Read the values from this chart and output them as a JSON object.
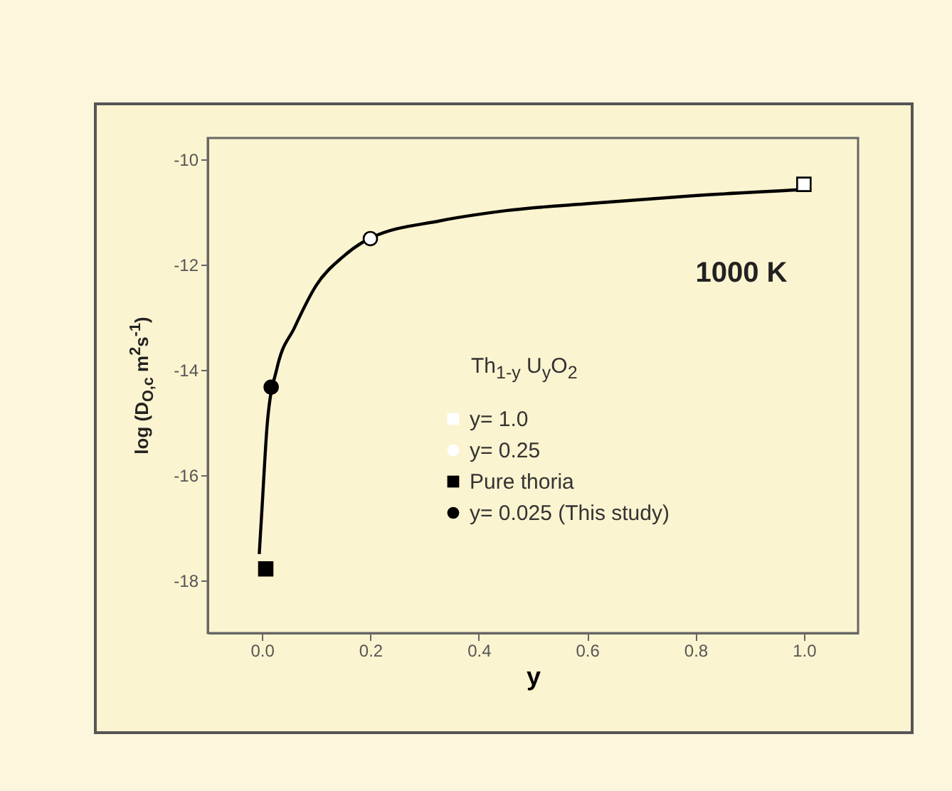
{
  "chart_data": {
    "type": "scatter",
    "xlabel": "y",
    "ylabel": "log (D$_{O,c}$ m$^{2}$s$^{-1}$)",
    "legend_title": "Th$_{1-y}$ U$_{y}$O$_{2}$",
    "annotations": [
      "1000 K"
    ],
    "xlim": [
      -0.1,
      1.1
    ],
    "ylim": [
      -19,
      -9.6
    ],
    "xticks": [
      {
        "value": 0,
        "label": "0.0"
      },
      {
        "value": 0.2,
        "label": "0.2"
      },
      {
        "value": 0.4,
        "label": "0.4"
      },
      {
        "value": 0.6,
        "label": "0.6"
      },
      {
        "value": 0.8,
        "label": "0.8"
      },
      {
        "value": 1,
        "label": "1.0"
      }
    ],
    "yticks": [
      -18,
      -16,
      -14,
      -12,
      -10
    ],
    "grid": false,
    "legend": "bottom right",
    "series": [
      {
        "type": "line",
        "color": "#000000",
        "line_style": "solid",
        "x": [
          -0.005,
          0,
          0.01,
          0.028,
          0.06,
          0.1,
          0.15,
          0.2,
          0.33,
          0.45,
          0.61,
          0.79,
          1.0
        ],
        "values": [
          -17.5,
          -16.65,
          -15.0,
          -13.96,
          -13.2,
          -12.4,
          -11.85,
          -11.5,
          -11.17,
          -10.98,
          -10.84,
          -10.7,
          -10.58
        ]
      },
      {
        "name": "y= 1.0",
        "marker": "square",
        "color": "#ffffff",
        "x": [
          1.0
        ],
        "values": [
          -10.48
        ]
      },
      {
        "name": "y= 0.25",
        "marker": "circle",
        "color": "#ffffff",
        "x": [
          0.2
        ],
        "values": [
          -11.51
        ]
      },
      {
        "name": "Pure thoria",
        "marker": "square",
        "color": "#000000",
        "x": [
          0.007
        ],
        "values": [
          -17.78
        ]
      },
      {
        "name": "y= 0.025  (This study)",
        "marker": "circle",
        "color": "#000000",
        "x": [
          0.017
        ],
        "values": [
          -14.33
        ]
      }
    ]
  }
}
